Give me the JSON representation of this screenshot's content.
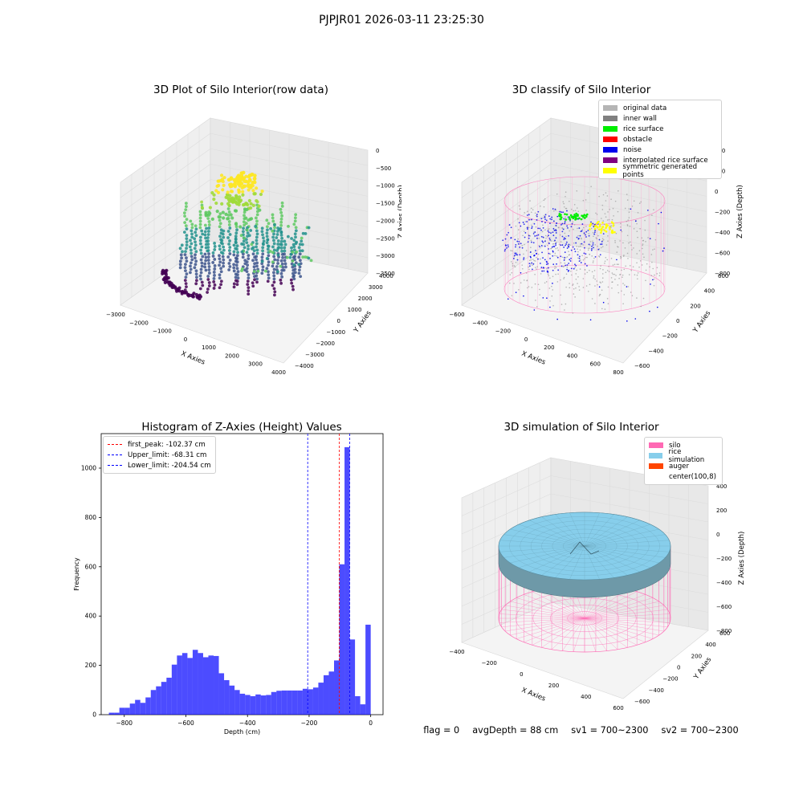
{
  "suptitle": "PJPJR01 2026-03-11 23:25:30",
  "panels": {
    "raw": {
      "title": "3D Plot of Silo Interior(row data)"
    },
    "classify": {
      "title": "3D classify of Silo Interior"
    },
    "sim": {
      "title": "3D simulation of Silo Interior"
    }
  },
  "classify_legend": [
    {
      "label": "original data",
      "color": "#b5b5b5"
    },
    {
      "label": "inner wall",
      "color": "#808080"
    },
    {
      "label": "rice surface",
      "color": "#00ee00"
    },
    {
      "label": "obstacle",
      "color": "#ff0000"
    },
    {
      "label": "noise",
      "color": "#0000ee"
    },
    {
      "label": "interpolated rice surface",
      "color": "#800080"
    },
    {
      "label": "symmetric generated points",
      "color": "#ffff00"
    }
  ],
  "sim_legend": [
    {
      "label": "silo",
      "color": "#ff69b4"
    },
    {
      "label": "rice simulation",
      "color": "#87ceeb"
    },
    {
      "label": "auger",
      "color": "#ff4500"
    },
    {
      "label": "center(100,8)",
      "color": ""
    }
  ],
  "footer": {
    "flag": "flag = 0",
    "avg": "avgDepth = 88 cm",
    "sv1": "sv1 = 700~2300",
    "sv2": "sv2 = 700~2300"
  },
  "axes3d": {
    "raw": {
      "xlabel": "X Axies",
      "ylabel": "Y Axies",
      "zlabel": "Z Axies (Depth)",
      "xticks": [
        "−3000",
        "−2000",
        "−1000",
        "0",
        "1000",
        "2000",
        "3000",
        "4000"
      ],
      "yticks": [
        "−4000",
        "−3000",
        "−2000",
        "−1000",
        "0",
        "1000",
        "2000",
        "3000",
        "4000"
      ],
      "zticks": [
        "0",
        "−500",
        "−1000",
        "−1500",
        "−2000",
        "−2500",
        "−3000",
        "−3500"
      ]
    },
    "classify": {
      "xlabel": "X Axies",
      "ylabel": "Y Axies",
      "zlabel": "Z Axies (Depth)",
      "xticks": [
        "−600",
        "−400",
        "−200",
        "0",
        "200",
        "400",
        "600",
        "800"
      ],
      "yticks": [
        "−600",
        "−400",
        "−200",
        "0",
        "200",
        "400",
        "600"
      ],
      "zticks": [
        "400",
        "200",
        "0",
        "−200",
        "−400",
        "−600",
        "−800"
      ]
    },
    "sim": {
      "xlabel": "X Axies",
      "ylabel": "Y Axies",
      "zlabel": "Z Axies (Depth)",
      "xticks": [
        "−400",
        "−200",
        "0",
        "200",
        "400",
        "600"
      ],
      "yticks": [
        "−600",
        "−400",
        "−200",
        "0",
        "200",
        "400",
        "600"
      ],
      "zticks": [
        "400",
        "200",
        "0",
        "−200",
        "−400",
        "−600",
        "−800"
      ]
    }
  },
  "chart_data": {
    "type": "bar",
    "title": "Histogram of Z-Axies (Height) Values",
    "xlabel": "Depth (cm)",
    "ylabel": "Frequency",
    "xlim": [
      -875,
      40
    ],
    "ylim": [
      0,
      1140
    ],
    "xticks": [
      -800,
      -600,
      -400,
      -200,
      0
    ],
    "yticks": [
      0,
      200,
      400,
      600,
      800,
      1000
    ],
    "bin_start": -850,
    "bin_width": 17,
    "values": [
      8,
      8,
      28,
      28,
      45,
      60,
      48,
      70,
      100,
      115,
      133,
      150,
      203,
      240,
      250,
      230,
      263,
      250,
      233,
      240,
      238,
      168,
      140,
      118,
      100,
      85,
      80,
      75,
      82,
      78,
      80,
      92,
      97,
      98,
      98,
      98,
      98,
      105,
      103,
      110,
      130,
      160,
      175,
      220,
      610,
      1085,
      305,
      75,
      42,
      365
    ],
    "bar_color": "#0000ff",
    "reference_lines": [
      {
        "label": "first_peak: -102.37 cm",
        "x": -102.37,
        "color": "#ff0000"
      },
      {
        "label": "Upper_limit: -68.31 cm",
        "x": -68.31,
        "color": "#0000ff"
      },
      {
        "label": "Lower_limit: -204.54 cm",
        "x": -204.54,
        "color": "#0000ff"
      }
    ],
    "legend_position": "upper-left"
  }
}
